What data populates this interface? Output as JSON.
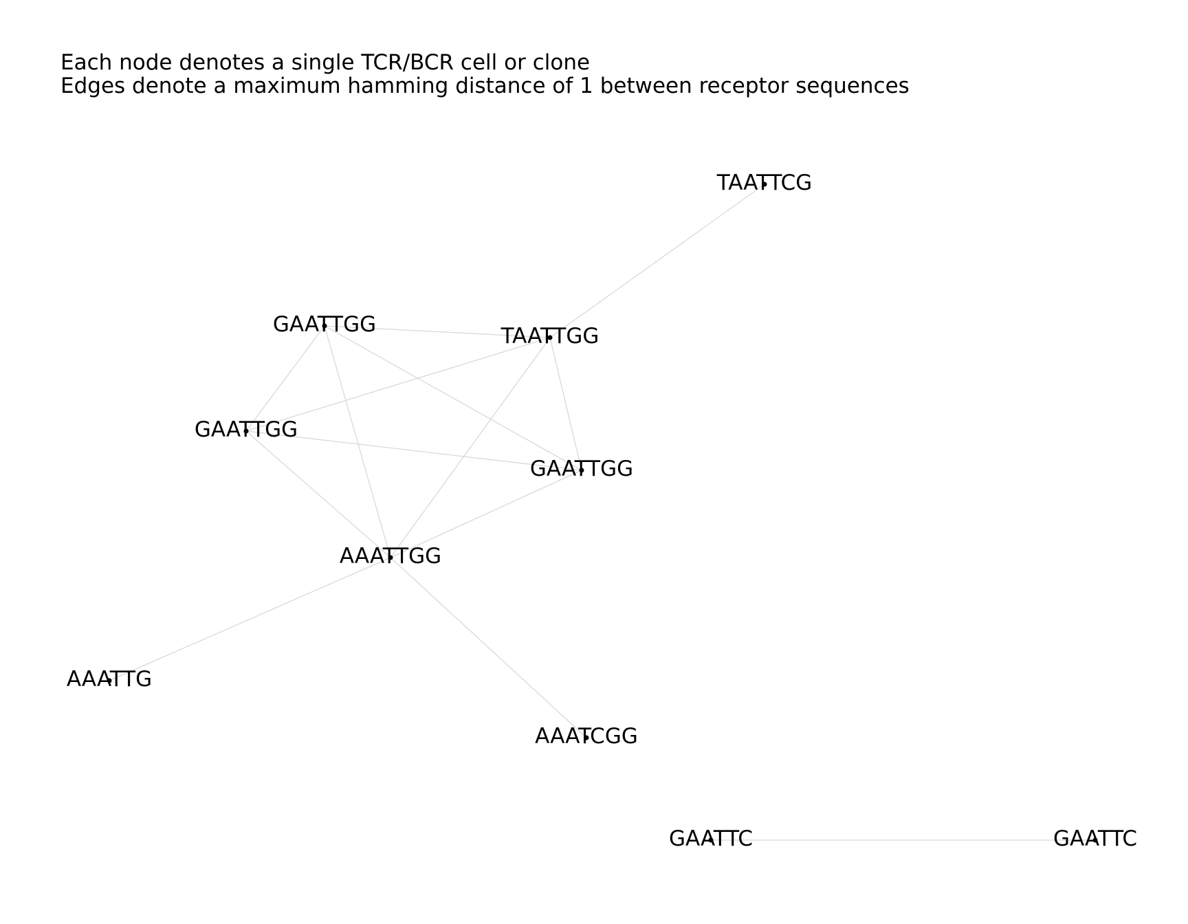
{
  "subtitle_lines": [
    "Each node denotes a single TCR/BCR cell or clone",
    "Edges denote a maximum hamming distance of 1 between receptor sequences"
  ],
  "colors": {
    "edge": "#d9d9d9",
    "node": "#000000",
    "background": "#ffffff"
  },
  "nodes": [
    {
      "id": "n1",
      "label": "TAATTCG"
    },
    {
      "id": "n2",
      "label": "GAATTGG"
    },
    {
      "id": "n3",
      "label": "TAATTGG"
    },
    {
      "id": "n4",
      "label": "GAATTGG"
    },
    {
      "id": "n5",
      "label": "GAATTGG"
    },
    {
      "id": "n6",
      "label": "AAATTGG"
    },
    {
      "id": "n7",
      "label": "AAATTG"
    },
    {
      "id": "n8",
      "label": "AAATCGG"
    },
    {
      "id": "n9",
      "label": "GAATTC"
    },
    {
      "id": "n10",
      "label": "GAATTC"
    }
  ],
  "edges": [
    [
      "n1",
      "n3"
    ],
    [
      "n2",
      "n3"
    ],
    [
      "n2",
      "n4"
    ],
    [
      "n2",
      "n5"
    ],
    [
      "n2",
      "n6"
    ],
    [
      "n3",
      "n4"
    ],
    [
      "n3",
      "n5"
    ],
    [
      "n3",
      "n6"
    ],
    [
      "n4",
      "n5"
    ],
    [
      "n4",
      "n6"
    ],
    [
      "n5",
      "n6"
    ],
    [
      "n6",
      "n7"
    ],
    [
      "n6",
      "n8"
    ],
    [
      "n9",
      "n10"
    ]
  ]
}
